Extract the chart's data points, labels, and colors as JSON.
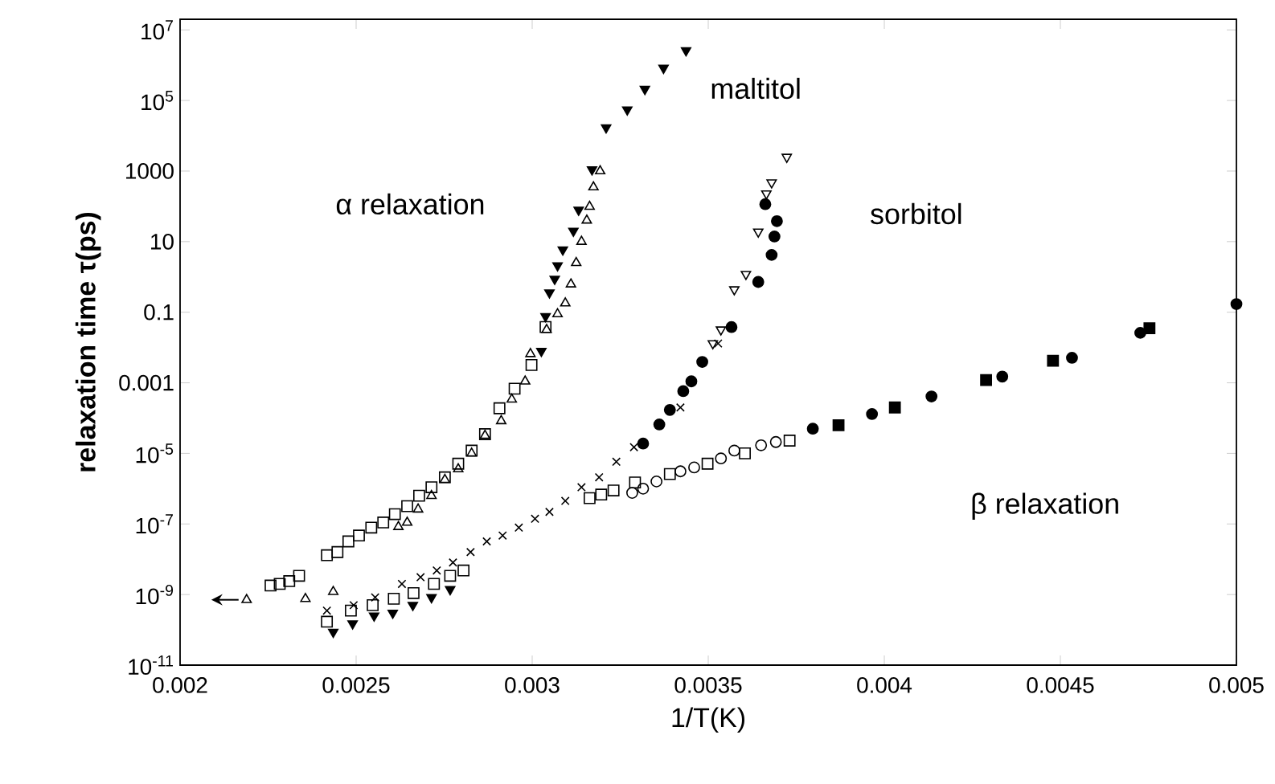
{
  "chart_data": {
    "type": "scatter",
    "xlabel": "1/T(K)",
    "ylabel": "relaxation time τ(ps)",
    "log": "y",
    "xlim": [
      0.002,
      0.005
    ],
    "ylim": [
      1e-11,
      20000000.0
    ],
    "xticks": [
      0.002,
      0.0025,
      0.003,
      0.0035,
      0.004,
      0.0045,
      0.005
    ],
    "yticks": [
      {
        "value": 1e-11,
        "label": "10$^{-11}$"
      },
      {
        "value": 1e-09,
        "label": "10$^{-9}$"
      },
      {
        "value": 1e-07,
        "label": "10$^{-7}$"
      },
      {
        "value": 1e-05,
        "label": "10$^{-5}$"
      },
      0.001,
      0.1,
      10,
      1000,
      {
        "value": 100000.0,
        "label": "10$^{5}$"
      },
      {
        "value": 10000000.0,
        "label": "10$^{7}$"
      }
    ],
    "annotations": [
      "maltitol",
      "sorbitol",
      "α relaxation",
      "β relaxation"
    ],
    "series": [
      {
        "color": "#000000",
        "marker": "triangle-down-filled",
        "x": [
          0.00321,
          0.00327,
          0.00332,
          0.003373,
          0.003437,
          0.00317,
          0.003132,
          0.003117,
          0.003087,
          0.003072,
          0.003064,
          0.003049,
          0.003038,
          0.003026,
          0.002435,
          0.00249,
          0.002551,
          0.002604,
          0.002661,
          0.002714,
          0.002767
        ],
        "values": [
          17000.0,
          55000.0,
          210000.0,
          830000.0,
          2600000.0,
          1100,
          79,
          20,
          5.9,
          2.1,
          0.87,
          0.36,
          0.076,
          0.0079,
          8.7e-11,
          1.5e-10,
          2.5e-10,
          3e-10,
          5e-10,
          8.3e-10,
          1.4e-09
        ]
      },
      {
        "color": "#000000",
        "marker": "triangle",
        "x": [
          0.003193,
          0.003174,
          0.003163,
          0.003155,
          0.00314,
          0.003125,
          0.00311,
          0.003094,
          0.003072,
          0.003041,
          0.002995,
          0.00298,
          0.002942,
          0.002912,
          0.002866,
          0.002828,
          0.00279,
          0.002752,
          0.002714,
          0.002676,
          0.002645,
          0.00262,
          0.002435,
          0.002356,
          0.002189
        ],
        "values": [
          1000,
          350,
          98,
          40,
          10,
          2.5,
          0.62,
          0.18,
          0.089,
          0.032,
          0.0066,
          0.0011,
          0.00034,
          8.3e-05,
          3.2e-05,
          1e-05,
          3.6e-06,
          1.8e-06,
          6.3e-07,
          2.6e-07,
          1.1e-07,
          8.3e-08,
          1.2e-09,
          7.6e-10,
          7.1e-10
        ]
      },
      {
        "color": "#000000",
        "marker": "square",
        "x": [
          0.002417,
          0.002447,
          0.002478,
          0.002508,
          0.002543,
          0.002577,
          0.00261,
          0.002645,
          0.002679,
          0.002714,
          0.002752,
          0.00279,
          0.002828,
          0.002866,
          0.002907,
          0.00295,
          0.002998,
          0.003038,
          0.002338,
          0.00231,
          0.002283,
          0.002257,
          0.002417,
          0.002485,
          0.002547,
          0.002607,
          0.002663,
          0.002721,
          0.002767,
          0.002805,
          0.003163,
          0.003196,
          0.003231,
          0.003292,
          0.003391,
          0.003498,
          0.003604,
          0.003731
        ],
        "values": [
          1.3e-08,
          1.6e-08,
          3.2e-08,
          4.7e-08,
          7.9e-08,
          1.1e-07,
          1.9e-07,
          3.2e-07,
          6.3e-07,
          1.1e-06,
          2.1e-06,
          5.1e-06,
          1.2e-05,
          3.5e-05,
          0.00019,
          0.00068,
          0.0032,
          0.038,
          3.4e-09,
          2.4e-09,
          2e-09,
          1.8e-09,
          1.7e-10,
          3.5e-10,
          5e-10,
          7.6e-10,
          1.1e-09,
          2e-09,
          3.4e-09,
          4.8e-09,
          5.4e-07,
          6.8e-07,
          8.9e-07,
          1.5e-06,
          2.6e-06,
          5.1e-06,
          1e-05,
          2.3e-05
        ]
      },
      {
        "color": "#000000",
        "marker": "circle",
        "x": [
          0.003284,
          0.003315,
          0.003353,
          0.003421,
          0.00346,
          0.003536,
          0.003574,
          0.00365,
          0.003692
        ],
        "values": [
          7.6e-07,
          1e-06,
          1.6e-06,
          3.1e-06,
          4e-06,
          7.2e-06,
          1.2e-05,
          1.7e-05,
          2.1e-05
        ]
      },
      {
        "color": "#000000",
        "marker": "cross",
        "x": [
          0.002417,
          0.002493,
          0.002554,
          0.00263,
          0.002683,
          0.002729,
          0.002775,
          0.002825,
          0.002871,
          0.002916,
          0.002962,
          0.003008,
          0.003049,
          0.003094,
          0.00314,
          0.00319,
          0.003239,
          0.003289,
          0.003421,
          0.003528
        ],
        "values": [
          3.5e-10,
          5e-10,
          8.3e-10,
          2e-09,
          3.1e-09,
          4.8e-09,
          8.1e-09,
          1.6e-08,
          3.2e-08,
          4.7e-08,
          7.9e-08,
          1.4e-07,
          2.2e-07,
          4.5e-07,
          1.1e-06,
          2.1e-06,
          5.8e-06,
          1.5e-05,
          0.0002,
          0.013
        ]
      },
      {
        "color": "#000000",
        "marker": "circle-filled",
        "x": [
          0.003315,
          0.003361,
          0.003391,
          0.003429,
          0.003452,
          0.003483,
          0.003566,
          0.003642,
          0.00368,
          0.003688,
          0.003695,
          0.003662,
          0.003797,
          0.003965,
          0.004134,
          0.004335,
          0.004533,
          0.004727,
          0.005
        ],
        "values": [
          1.9e-05,
          6.6e-05,
          0.00017,
          0.00058,
          0.0011,
          0.0039,
          0.038,
          0.72,
          4.2,
          14,
          38,
          115,
          5e-05,
          0.00013,
          0.00041,
          0.0015,
          0.0051,
          0.026,
          0.17
        ]
      },
      {
        "color": "#000000",
        "marker": "square-filled",
        "x": [
          0.00387,
          0.00403,
          0.004289,
          0.004479,
          0.004753
        ],
        "values": [
          6.3e-05,
          0.0002,
          0.0012,
          0.0042,
          0.035
        ]
      },
      {
        "color": "#000000",
        "marker": "triangle-down",
        "x": [
          0.003723,
          0.00368,
          0.003665,
          0.003642,
          0.003607,
          0.003574,
          0.003536,
          0.003513
        ],
        "values": [
          2500,
          470,
          230,
          19,
          1.2,
          0.44,
          0.032,
          0.013
        ]
      }
    ]
  }
}
